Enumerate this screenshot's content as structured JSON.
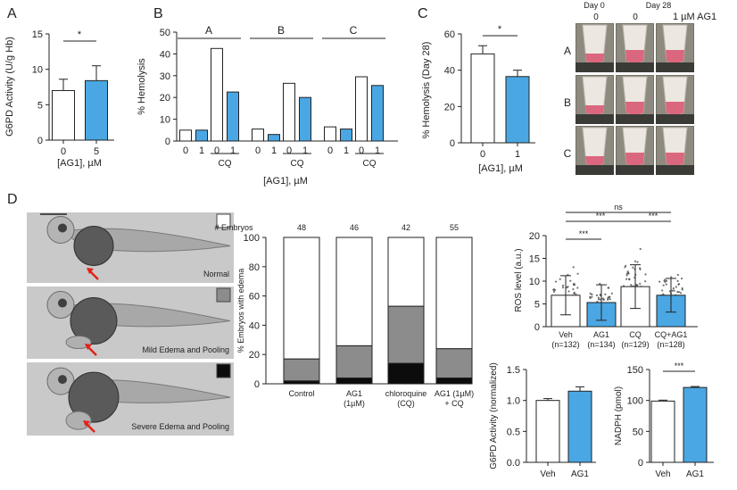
{
  "panel_labels": [
    "A",
    "B",
    "C",
    "D"
  ],
  "photo_C": {
    "header_day0": "Day 0",
    "header_day28": "Day 28",
    "col_labels": [
      "0",
      "0",
      "1 µM AG1"
    ],
    "row_labels": [
      "A",
      "B",
      "C"
    ]
  },
  "photo_D": {
    "labels": [
      "Normal",
      "Mild Edema and Pooling",
      "Severe Edema and Pooling"
    ],
    "legend_colors": [
      "#ffffff",
      "#8c8c8c",
      "#0c0c0c"
    ]
  },
  "colors": {
    "white_bar": "#ffffff",
    "blue_bar": "#4aa7e3",
    "axis": "#222222",
    "grey_mid": "#8c8c8c",
    "black": "#0c0c0c",
    "arrow": "#e32119"
  },
  "chart_data": [
    {
      "id": "A",
      "type": "bar",
      "categories": [
        "0",
        "5"
      ],
      "values": [
        7.0,
        8.4
      ],
      "errors": [
        1.6,
        2.1
      ],
      "colors": [
        "#ffffff",
        "#4aa7e3"
      ],
      "ylabel": "G6PD Activity (U/g Hb)",
      "xlabel": "[AG1], µM",
      "ylim": [
        0,
        15
      ],
      "yticks": [
        "0",
        "5",
        "10",
        "15"
      ],
      "significance": "*"
    },
    {
      "id": "B",
      "type": "bar",
      "groups": [
        {
          "name": "A",
          "categories": [
            "0",
            "1",
            "0",
            "1"
          ],
          "values": [
            5.0,
            5.0,
            42.5,
            22.5
          ]
        },
        {
          "name": "B",
          "categories": [
            "0",
            "1",
            "0",
            "1"
          ],
          "values": [
            5.5,
            3.0,
            26.5,
            20.0
          ]
        },
        {
          "name": "C",
          "categories": [
            "0",
            "1",
            "0",
            "1"
          ],
          "values": [
            6.5,
            5.5,
            29.5,
            25.5
          ]
        }
      ],
      "bar_colors": [
        "#ffffff",
        "#4aa7e3",
        "#ffffff",
        "#4aa7e3"
      ],
      "cq_label": "CQ",
      "ylabel": "% Hemolysis",
      "xlabel": "[AG1], µM",
      "ylim": [
        0,
        50
      ],
      "yticks": [
        "0",
        "10",
        "20",
        "30",
        "40",
        "50"
      ]
    },
    {
      "id": "C",
      "type": "bar",
      "categories": [
        "0",
        "1"
      ],
      "values": [
        49.0,
        36.5
      ],
      "errors": [
        4.5,
        3.5
      ],
      "colors": [
        "#ffffff",
        "#4aa7e3"
      ],
      "ylabel": "% Hemolysis (Day 28)",
      "xlabel": "[AG1], µM",
      "ylim": [
        0,
        60
      ],
      "yticks": [
        "0",
        "20",
        "40",
        "60"
      ],
      "significance": "*"
    },
    {
      "id": "D-stacked",
      "type": "bar",
      "stacked": true,
      "top_label": "# Embryos",
      "categories": [
        "Control",
        "AG1\n(1µM)",
        "chloroquine\n(CQ)",
        "AG1 (1µM)\n+ CQ"
      ],
      "counts": [
        "48",
        "46",
        "42",
        "55"
      ],
      "series": [
        {
          "values": [
            2,
            4,
            14,
            4
          ],
          "color": "#0c0c0c"
        },
        {
          "values": [
            15,
            22,
            39,
            20
          ],
          "color": "#8c8c8c"
        },
        {
          "values": [
            83,
            74,
            47,
            76
          ],
          "color": "#ffffff"
        }
      ],
      "ylabel": "% Embryos with edema",
      "ylim": [
        0,
        100
      ],
      "yticks": [
        "0",
        "20",
        "40",
        "60",
        "80",
        "100"
      ]
    },
    {
      "id": "D-ROS",
      "type": "scatter",
      "categories": [
        "Veh\n(n=132)",
        "AG1\n(n=134)",
        "CQ\n(n=129)",
        "CQ+AG1\n(n=128)"
      ],
      "counts": [
        132,
        134,
        129,
        128
      ],
      "means": [
        6.9,
        5.3,
        8.8,
        6.9
      ],
      "sd": [
        4.3,
        3.9,
        4.8,
        3.7
      ],
      "colors": [
        "#ffffff",
        "#4aa7e3",
        "#ffffff",
        "#4aa7e3"
      ],
      "ylabel": "ROS level (a.u.)",
      "ylim": [
        0,
        20
      ],
      "yticks": [
        "0",
        "5",
        "10",
        "15",
        "20"
      ],
      "comparisons": [
        {
          "from": 0,
          "to": 3,
          "label": "ns"
        },
        {
          "from": 0,
          "to": 2,
          "label": "***"
        },
        {
          "from": 2,
          "to": 3,
          "label": "***"
        },
        {
          "from": 0,
          "to": 1,
          "label": "***"
        }
      ]
    },
    {
      "id": "D-G6PD",
      "type": "bar",
      "categories": [
        "Veh",
        "AG1"
      ],
      "values": [
        1.0,
        1.15
      ],
      "errors": [
        0.03,
        0.07
      ],
      "colors": [
        "#ffffff",
        "#4aa7e3"
      ],
      "ylabel": "G6PD Activity (normalized)",
      "ylim": [
        0,
        1.5
      ],
      "yticks": [
        "0.0",
        "0.5",
        "1.0",
        "1.5"
      ]
    },
    {
      "id": "D-NADPH",
      "type": "bar",
      "categories": [
        "Veh",
        "AG1"
      ],
      "values": [
        99,
        121
      ],
      "errors": [
        1.5,
        1.5
      ],
      "colors": [
        "#ffffff",
        "#4aa7e3"
      ],
      "ylabel": "NADPH (pmol)",
      "ylim": [
        0,
        150
      ],
      "yticks": [
        "0",
        "50",
        "100",
        "150"
      ],
      "significance": "***"
    }
  ]
}
